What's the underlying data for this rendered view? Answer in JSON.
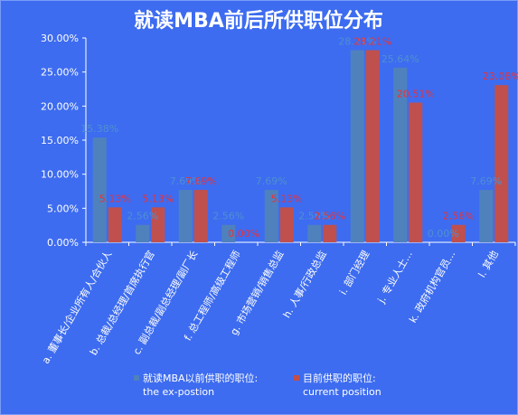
{
  "chart_data": {
    "type": "bar",
    "title": "就读MBA前后所供职位分布",
    "categories": [
      "a. 董事长/企业所有人/合伙人",
      "b. 总裁/总经理/首席执行官",
      "c. 副总裁/副总经理/副厂长",
      "f. 总工程师/高级工程师",
      "g. 市场营销/销售总监",
      "h. 人事/行政总监",
      "i. 部门经理",
      "j. 专业人士...",
      "k. 政府机构官员...",
      "l. 其他"
    ],
    "series": [
      {
        "name": "就读MBA以前供职的职位:\nthe ex-postion",
        "color": "#4f81bd",
        "label_color": "#4f8fd0",
        "values": [
          15.38,
          2.56,
          7.69,
          2.56,
          7.69,
          2.56,
          28.21,
          25.64,
          0.0,
          7.69
        ],
        "labels": [
          "15.38%",
          "2.56%",
          "7.69%",
          "2.56%",
          "7.69%",
          "2.56%",
          "28.21%",
          "25.64%",
          "0.00%",
          "7.69%"
        ]
      },
      {
        "name": "目前供职的职位:\ncurrent position",
        "color": "#c0504d",
        "label_color": "#e8323a",
        "values": [
          5.13,
          5.13,
          7.69,
          0.0,
          5.13,
          2.56,
          28.21,
          20.51,
          2.56,
          23.08
        ],
        "labels": [
          "5.13%",
          "5.13%",
          "7.69%",
          "0.00%",
          "5.13%",
          "2.56%",
          "28.21%",
          "20.51%",
          "2.56%",
          "23.08%"
        ]
      }
    ],
    "yticks": [
      "0.00%",
      "5.00%",
      "10.00%",
      "15.00%",
      "20.00%",
      "25.00%",
      "30.00%"
    ],
    "ylim": [
      0,
      30
    ],
    "grid": false,
    "legend_position": "bottom",
    "background_color": "#3d6cf0",
    "text_color": "#ffffff",
    "axis_color": "#ffffff"
  }
}
